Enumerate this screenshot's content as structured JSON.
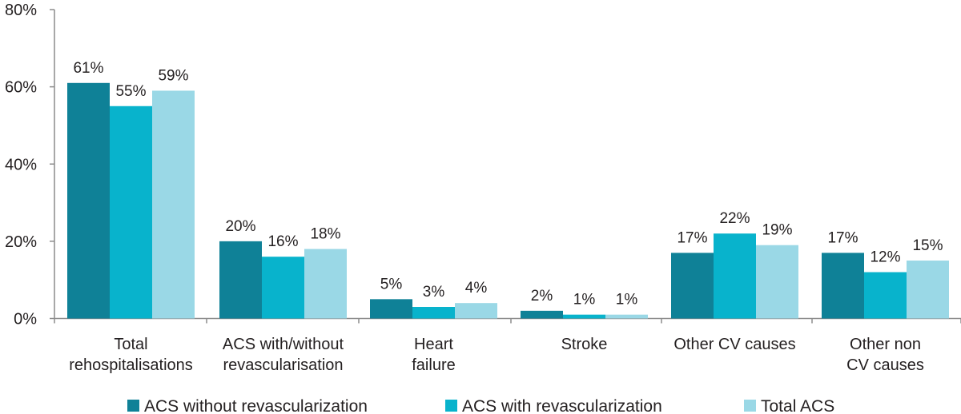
{
  "chart_data": {
    "type": "bar",
    "categories": [
      [
        "Total",
        "rehospitalisations"
      ],
      [
        "ACS with/without",
        "revascularisation"
      ],
      [
        "Heart",
        "failure"
      ],
      [
        "Stroke"
      ],
      [
        "Other CV causes"
      ],
      [
        "Other non",
        "CV causes"
      ]
    ],
    "series": [
      {
        "name": "ACS without revascularization",
        "color": "#0f8197",
        "values": [
          61,
          20,
          5,
          2,
          17,
          17
        ],
        "labels": [
          "61%",
          "20%",
          "5%",
          "2%",
          "17%",
          "17%"
        ]
      },
      {
        "name": "ACS with revascularization",
        "color": "#08b3cc",
        "values": [
          55,
          16,
          3,
          1,
          22,
          12
        ],
        "labels": [
          "55%",
          "16%",
          "3%",
          "1%",
          "22%",
          "12%"
        ]
      },
      {
        "name": "Total ACS",
        "color": "#9ad8e6",
        "values": [
          59,
          18,
          4,
          1,
          19,
          15
        ],
        "labels": [
          "59%",
          "18%",
          "4%",
          "1%",
          "19%",
          "15%"
        ]
      }
    ],
    "ylim": [
      0,
      80
    ],
    "yticks": [
      "0%",
      "20%",
      "40%",
      "60%",
      "80%"
    ],
    "ytick_values": [
      0,
      20,
      40,
      60,
      80
    ],
    "legend_position": "bottom",
    "grid": false
  }
}
